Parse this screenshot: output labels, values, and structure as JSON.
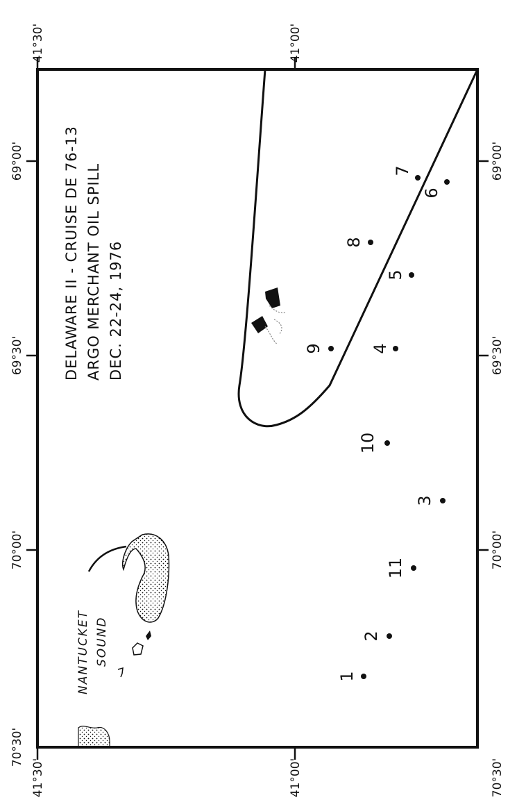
{
  "map": {
    "title_lines": [
      "DELAWARE II - CRUISE DE 76-13",
      "ARGO MERCHANT OIL SPILL",
      "DEC. 22-24, 1976"
    ],
    "region_label_lines": [
      "NANTUCKET",
      "SOUND"
    ],
    "latitude_ticks": [
      "41°30'",
      "41°00'",
      "41°30'",
      "41°00'"
    ],
    "longitude_ticks_top": [
      "70°30'",
      "70°00'",
      "69°30'",
      "69°00'"
    ],
    "longitude_ticks_bottom": [
      "70°30'",
      "70°00'",
      "69°30'",
      "69°00'"
    ],
    "stations": [
      {
        "label": "1"
      },
      {
        "label": "2"
      },
      {
        "label": "3"
      },
      {
        "label": "4"
      },
      {
        "label": "5"
      },
      {
        "label": "6"
      },
      {
        "label": "7"
      },
      {
        "label": "8"
      },
      {
        "label": "9"
      },
      {
        "label": "10"
      },
      {
        "label": "11"
      }
    ],
    "colors": {
      "ink": "#111111",
      "paper": "#ffffff"
    }
  }
}
